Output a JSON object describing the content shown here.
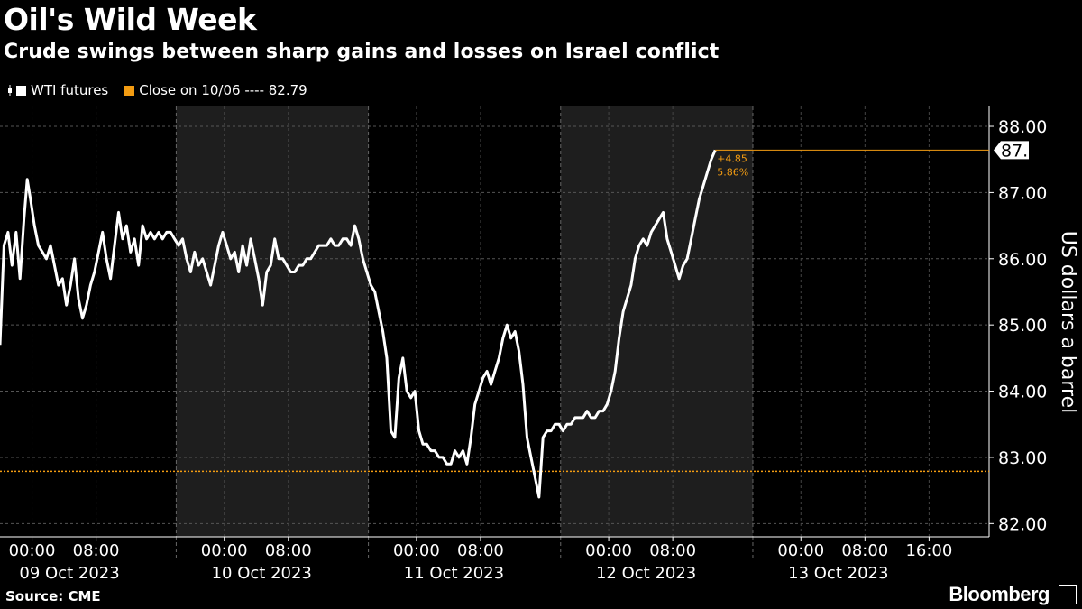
{
  "header": {
    "title": "Oil's Wild Week",
    "subtitle": "Crude swings between sharp gains and losses on Israel conflict"
  },
  "legend": {
    "series_label": "WTI futures",
    "ref_label": "Close on 10/06 ---- 82.79"
  },
  "footer": {
    "source": "Source: CME",
    "brand": "Bloomberg"
  },
  "colors": {
    "background": "#000000",
    "shaded": "#1e1e1e",
    "price": "#ffffff",
    "reference": "#f39c12",
    "grid": "#555555"
  },
  "chart_data": {
    "type": "line",
    "title": "Oil's Wild Week",
    "subtitle": "Crude swings between sharp gains and losses on Israel conflict",
    "ylabel": "US dollars a barrel",
    "ylim": [
      81.8,
      88.3
    ],
    "y_ticks": [
      "88.00",
      "87.00",
      "86.00",
      "85.00",
      "84.00",
      "83.00",
      "82.00"
    ],
    "y_tick_values": [
      88,
      87,
      86,
      85,
      84,
      83,
      82
    ],
    "x_time_labels": [
      "00:00",
      "08:00",
      "00:00",
      "08:00",
      "00:00",
      "08:00",
      "00:00",
      "08:00",
      "00:00",
      "08:00",
      "16:00"
    ],
    "x_time_hours": [
      24,
      32,
      48,
      56,
      72,
      80,
      96,
      104,
      120,
      128,
      136
    ],
    "x_day_labels": [
      "09 Oct 2023",
      "10 Oct 2023",
      "11 Oct 2023",
      "12 Oct 2023",
      "13 Oct 2023"
    ],
    "x_day_hours": [
      28,
      52,
      76,
      100,
      124
    ],
    "xlim_hours": [
      20,
      143.5
    ],
    "shaded_sessions_hours": [
      [
        42,
        66
      ],
      [
        90,
        114
      ]
    ],
    "session_dividers_hours": [
      42,
      66,
      90,
      114
    ],
    "reference": {
      "label": "Close on 10/06",
      "value": 82.79
    },
    "last": {
      "value": "87.64",
      "change": "+4.85",
      "change_pct": "5.86%"
    },
    "series": [
      {
        "name": "WTI futures",
        "points_hours_value": [
          [
            20.0,
            84.7
          ],
          [
            20.5,
            86.2
          ],
          [
            21.0,
            86.4
          ],
          [
            21.5,
            85.9
          ],
          [
            22.0,
            86.4
          ],
          [
            22.5,
            85.7
          ],
          [
            23.0,
            86.6
          ],
          [
            23.4,
            87.2
          ],
          [
            23.8,
            86.9
          ],
          [
            24.3,
            86.5
          ],
          [
            24.8,
            86.2
          ],
          [
            25.3,
            86.1
          ],
          [
            25.8,
            86.0
          ],
          [
            26.3,
            86.2
          ],
          [
            26.8,
            85.9
          ],
          [
            27.3,
            85.6
          ],
          [
            27.8,
            85.7
          ],
          [
            28.3,
            85.3
          ],
          [
            28.8,
            85.6
          ],
          [
            29.3,
            86.0
          ],
          [
            29.8,
            85.4
          ],
          [
            30.3,
            85.1
          ],
          [
            30.8,
            85.3
          ],
          [
            31.3,
            85.6
          ],
          [
            31.8,
            85.8
          ],
          [
            32.3,
            86.1
          ],
          [
            32.8,
            86.4
          ],
          [
            33.3,
            86.0
          ],
          [
            33.8,
            85.7
          ],
          [
            34.3,
            86.2
          ],
          [
            34.8,
            86.7
          ],
          [
            35.3,
            86.3
          ],
          [
            35.8,
            86.5
          ],
          [
            36.3,
            86.1
          ],
          [
            36.8,
            86.3
          ],
          [
            37.3,
            85.9
          ],
          [
            37.8,
            86.5
          ],
          [
            38.3,
            86.3
          ],
          [
            38.8,
            86.4
          ],
          [
            39.3,
            86.3
          ],
          [
            39.8,
            86.4
          ],
          [
            40.3,
            86.3
          ],
          [
            40.8,
            86.4
          ],
          [
            41.3,
            86.4
          ],
          [
            41.8,
            86.3
          ],
          [
            42.3,
            86.2
          ],
          [
            42.8,
            86.3
          ],
          [
            43.3,
            86.0
          ],
          [
            43.8,
            85.8
          ],
          [
            44.3,
            86.1
          ],
          [
            44.8,
            85.9
          ],
          [
            45.3,
            86.0
          ],
          [
            45.8,
            85.8
          ],
          [
            46.3,
            85.6
          ],
          [
            46.8,
            85.9
          ],
          [
            47.3,
            86.2
          ],
          [
            47.8,
            86.4
          ],
          [
            48.3,
            86.2
          ],
          [
            48.8,
            86.0
          ],
          [
            49.3,
            86.1
          ],
          [
            49.8,
            85.8
          ],
          [
            50.3,
            86.2
          ],
          [
            50.8,
            85.9
          ],
          [
            51.3,
            86.3
          ],
          [
            51.8,
            86.0
          ],
          [
            52.3,
            85.7
          ],
          [
            52.8,
            85.3
          ],
          [
            53.3,
            85.8
          ],
          [
            53.8,
            85.9
          ],
          [
            54.3,
            86.3
          ],
          [
            54.8,
            86.0
          ],
          [
            55.3,
            86.0
          ],
          [
            55.8,
            85.9
          ],
          [
            56.3,
            85.8
          ],
          [
            56.8,
            85.8
          ],
          [
            57.3,
            85.9
          ],
          [
            57.8,
            85.9
          ],
          [
            58.3,
            86.0
          ],
          [
            58.8,
            86.0
          ],
          [
            59.3,
            86.1
          ],
          [
            59.8,
            86.2
          ],
          [
            60.3,
            86.2
          ],
          [
            60.8,
            86.2
          ],
          [
            61.3,
            86.3
          ],
          [
            61.8,
            86.2
          ],
          [
            62.3,
            86.2
          ],
          [
            62.8,
            86.3
          ],
          [
            63.3,
            86.3
          ],
          [
            63.8,
            86.2
          ],
          [
            64.3,
            86.5
          ],
          [
            64.8,
            86.3
          ],
          [
            65.3,
            86.0
          ],
          [
            65.8,
            85.8
          ],
          [
            66.3,
            85.6
          ],
          [
            66.8,
            85.5
          ],
          [
            67.3,
            85.2
          ],
          [
            67.8,
            84.9
          ],
          [
            68.3,
            84.5
          ],
          [
            68.8,
            83.4
          ],
          [
            69.3,
            83.3
          ],
          [
            69.8,
            84.2
          ],
          [
            70.3,
            84.5
          ],
          [
            70.8,
            84.0
          ],
          [
            71.3,
            83.9
          ],
          [
            71.8,
            84.0
          ],
          [
            72.3,
            83.4
          ],
          [
            72.8,
            83.2
          ],
          [
            73.3,
            83.2
          ],
          [
            73.8,
            83.1
          ],
          [
            74.3,
            83.1
          ],
          [
            74.8,
            83.0
          ],
          [
            75.3,
            83.0
          ],
          [
            75.8,
            82.9
          ],
          [
            76.3,
            82.9
          ],
          [
            76.8,
            83.1
          ],
          [
            77.3,
            83.0
          ],
          [
            77.8,
            83.1
          ],
          [
            78.3,
            82.9
          ],
          [
            78.8,
            83.3
          ],
          [
            79.3,
            83.8
          ],
          [
            79.8,
            84.0
          ],
          [
            80.3,
            84.2
          ],
          [
            80.8,
            84.3
          ],
          [
            81.3,
            84.1
          ],
          [
            81.8,
            84.3
          ],
          [
            82.3,
            84.5
          ],
          [
            82.8,
            84.8
          ],
          [
            83.3,
            85.0
          ],
          [
            83.8,
            84.8
          ],
          [
            84.3,
            84.9
          ],
          [
            84.8,
            84.6
          ],
          [
            85.3,
            84.1
          ],
          [
            85.8,
            83.3
          ],
          [
            86.3,
            83.0
          ],
          [
            86.8,
            82.7
          ],
          [
            87.3,
            82.4
          ],
          [
            87.8,
            83.3
          ],
          [
            88.3,
            83.4
          ],
          [
            88.8,
            83.4
          ],
          [
            89.3,
            83.5
          ],
          [
            89.8,
            83.5
          ],
          [
            90.3,
            83.4
          ],
          [
            90.8,
            83.5
          ],
          [
            91.3,
            83.5
          ],
          [
            91.8,
            83.6
          ],
          [
            92.3,
            83.6
          ],
          [
            92.8,
            83.6
          ],
          [
            93.3,
            83.7
          ],
          [
            93.8,
            83.6
          ],
          [
            94.3,
            83.6
          ],
          [
            94.8,
            83.7
          ],
          [
            95.3,
            83.7
          ],
          [
            95.8,
            83.8
          ],
          [
            96.3,
            84.0
          ],
          [
            96.8,
            84.3
          ],
          [
            97.3,
            84.8
          ],
          [
            97.8,
            85.2
          ],
          [
            98.3,
            85.4
          ],
          [
            98.8,
            85.6
          ],
          [
            99.3,
            86.0
          ],
          [
            99.8,
            86.2
          ],
          [
            100.3,
            86.3
          ],
          [
            100.8,
            86.2
          ],
          [
            101.3,
            86.4
          ],
          [
            101.8,
            86.5
          ],
          [
            102.3,
            86.6
          ],
          [
            102.8,
            86.7
          ],
          [
            103.3,
            86.3
          ],
          [
            103.8,
            86.1
          ],
          [
            104.3,
            85.9
          ],
          [
            104.8,
            85.7
          ],
          [
            105.3,
            85.9
          ],
          [
            105.8,
            86.0
          ],
          [
            106.3,
            86.3
          ],
          [
            106.8,
            86.6
          ],
          [
            107.3,
            86.9
          ],
          [
            107.8,
            87.1
          ],
          [
            108.3,
            87.3
          ],
          [
            108.8,
            87.5
          ],
          [
            109.3,
            87.64
          ]
        ]
      }
    ]
  }
}
